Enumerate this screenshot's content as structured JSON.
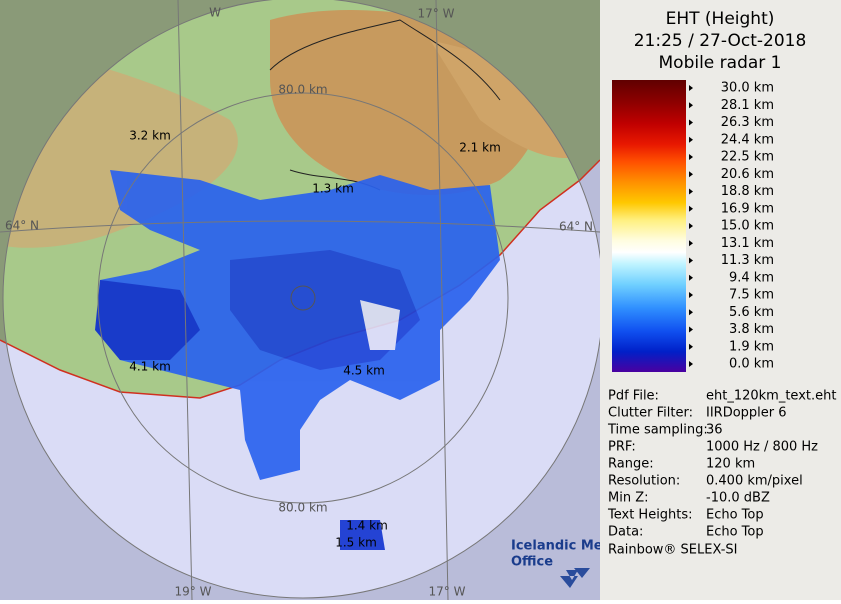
{
  "map": {
    "ring_labels": [
      "80.0 km",
      "80.0 km"
    ],
    "grid_labels": [
      "W",
      "17° W",
      "64° N",
      "64° N",
      "19° W",
      "17° W"
    ],
    "echo_labels": [
      "3.2 km",
      "2.1 km",
      "1.3 km",
      "4.1 km",
      "4.5 km",
      "1.4 km",
      "1.5 km"
    ],
    "logo": [
      "Icelandic Met",
      "Office"
    ]
  },
  "panel": {
    "title": [
      "EHT (Height)",
      "21:25 / 27-Oct-2018",
      "Mobile radar 1"
    ],
    "scale": [
      "30.0 km",
      "28.1 km",
      "26.3 km",
      "24.4 km",
      "22.5 km",
      "20.6 km",
      "18.8 km",
      "16.9 km",
      "15.0 km",
      "13.1 km",
      "11.3 km",
      "9.4 km",
      "7.5 km",
      "5.6 km",
      "3.8 km",
      "1.9 km",
      "0.0 km"
    ],
    "info": [
      [
        "Pdf File:",
        "eht_120km_text.eht"
      ],
      [
        "Clutter Filter:",
        "IIRDoppler 6"
      ],
      [
        "Time sampling:",
        "36"
      ],
      [
        "PRF:",
        "1000 Hz / 800 Hz"
      ],
      [
        "Range:",
        "120 km"
      ],
      [
        "Resolution:",
        "0.400 km/pixel"
      ],
      [
        "Min Z:",
        "-10.0 dBZ"
      ],
      [
        "Text Heights:",
        "Echo Top"
      ],
      [
        "Data:",
        "Echo Top"
      ]
    ],
    "footer": "Rainbow® SELEX-SI"
  }
}
